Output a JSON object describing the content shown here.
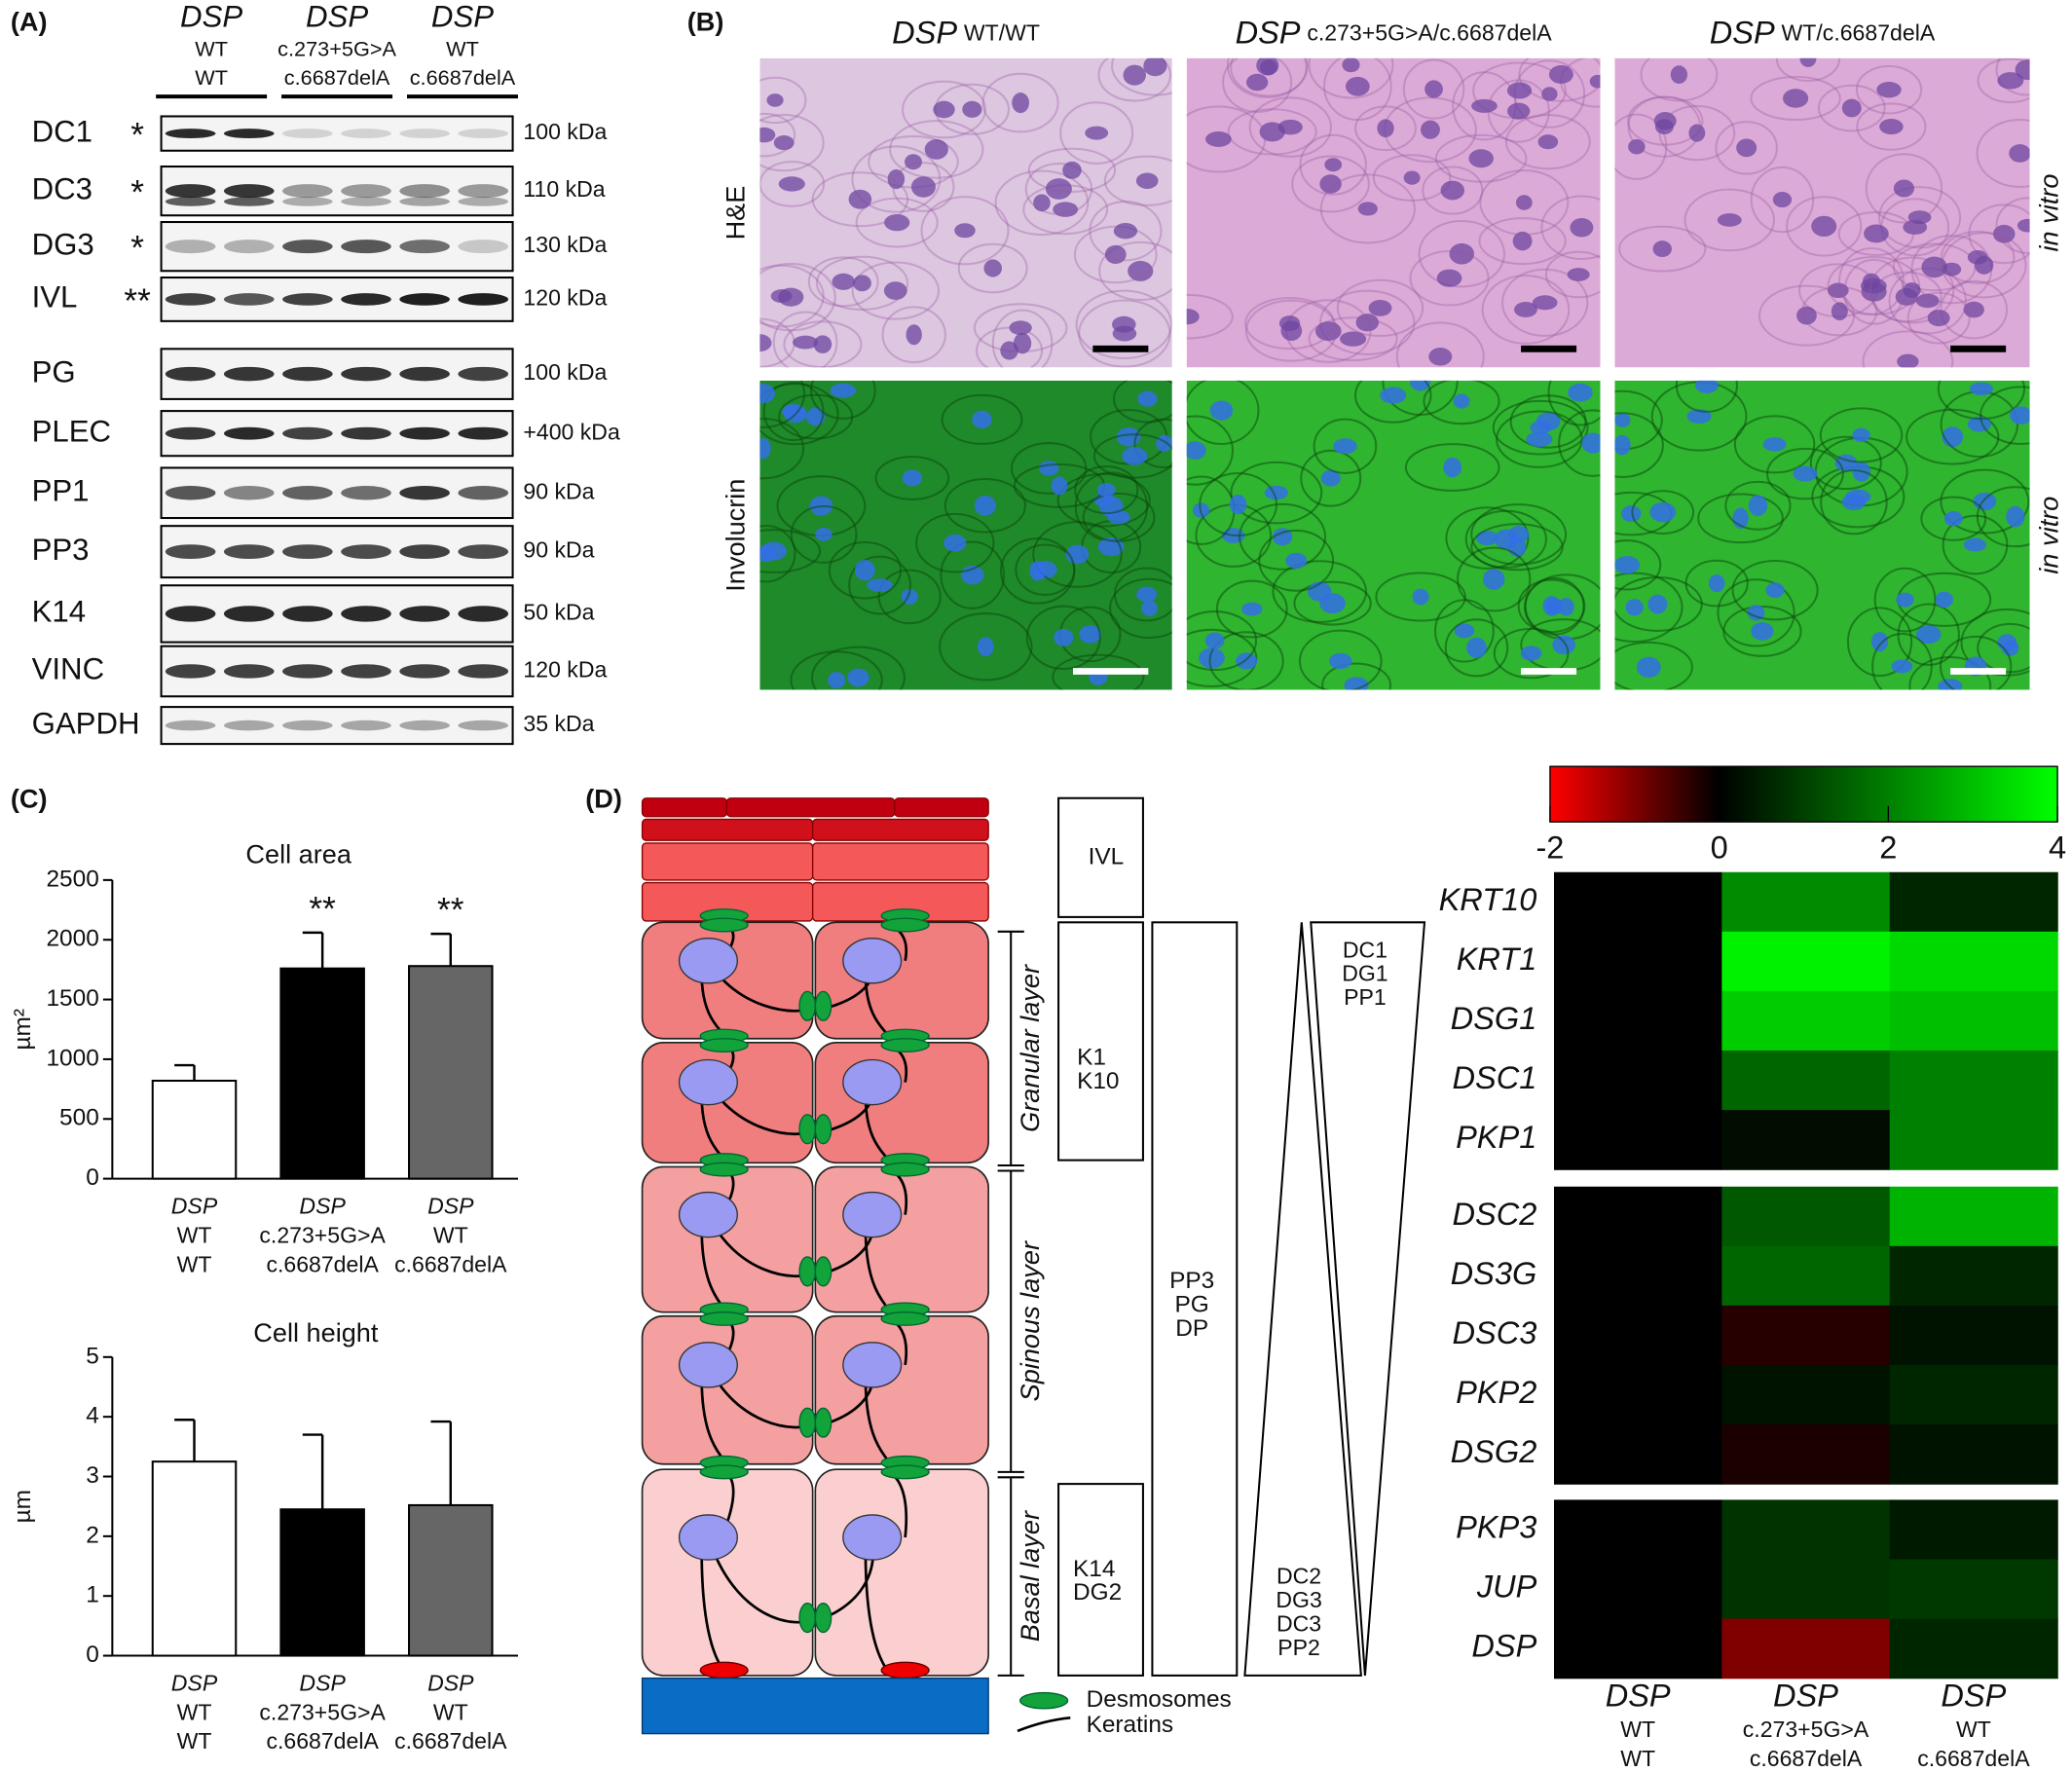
{
  "panel_a": {
    "label": "(A)",
    "groups": [
      {
        "gene": "DSP",
        "allele1": "WT",
        "allele2": "WT"
      },
      {
        "gene": "DSP",
        "allele1": "c.273+5G>A",
        "allele2": "c.6687delA"
      },
      {
        "gene": "DSP",
        "allele1": "WT",
        "allele2": "c.6687delA"
      }
    ],
    "blots": [
      {
        "protein": "DC1",
        "mark": "*",
        "size": "100 kDa"
      },
      {
        "protein": "DC3",
        "mark": "*",
        "size": "110 kDa"
      },
      {
        "protein": "DG3",
        "mark": "*",
        "size": "130 kDa"
      },
      {
        "protein": "IVL",
        "mark": "**",
        "size": "120 kDa"
      },
      {
        "protein": "PG",
        "size": "100 kDa"
      },
      {
        "protein": "PLEC",
        "size": "+400 kDa"
      },
      {
        "protein": "PP1",
        "size": "90 kDa"
      },
      {
        "protein": "PP3",
        "size": "90 kDa"
      },
      {
        "protein": "K14",
        "size": "50 kDa"
      },
      {
        "protein": "VINC",
        "size": "120 kDa"
      },
      {
        "protein": "GAPDH",
        "size": "35 kDa"
      }
    ]
  },
  "panel_b": {
    "label": "(B)",
    "columns": [
      {
        "gene": "DSP",
        "genotype": "WT/WT"
      },
      {
        "gene": "DSP",
        "genotype": "c.273+5G>A/c.6687delA"
      },
      {
        "gene": "DSP",
        "genotype": "WT/c.6687delA"
      }
    ],
    "rows": [
      {
        "stain": "H&E",
        "note": "in vitro"
      },
      {
        "stain": "Involucrin",
        "note": "in vitro"
      }
    ]
  },
  "panel_c": {
    "label": "(C)"
  },
  "panel_d": {
    "label": "(D)",
    "cornified_marker": "IVL",
    "granular_markers": [
      "K1",
      "K10"
    ],
    "basal_markers": [
      "K14",
      "DG2"
    ],
    "layers": [
      "Granular layer",
      "Spinous layer",
      "Basal layer"
    ],
    "constant_markers": [
      "PP3",
      "PG",
      "DP"
    ],
    "decreasing_markers": [
      "DC1",
      "DG1",
      "PP1"
    ],
    "increasing_markers": [
      "DC2",
      "DG3",
      "DC3",
      "PP2"
    ],
    "legend": [
      "Desmosomes",
      "Keratins"
    ]
  },
  "chart_data": [
    {
      "type": "bar",
      "title": "Cell area",
      "y_label": "µm²",
      "categories": [
        [
          "DSP",
          "WT",
          "WT"
        ],
        [
          "DSP",
          "c.273+5G>A",
          "c.6687delA"
        ],
        [
          "DSP",
          "WT",
          "c.6687delA"
        ]
      ],
      "values": [
        820,
        1760,
        1780
      ],
      "errors": [
        130,
        300,
        270
      ],
      "colors": [
        "#ffffff",
        "#000000",
        "#666666"
      ],
      "significance": [
        null,
        "**",
        "**"
      ],
      "ylim": [
        0,
        2500
      ],
      "yticks": [
        0,
        500,
        1000,
        1500,
        2000,
        2500
      ]
    },
    {
      "type": "bar",
      "title": "Cell height",
      "y_label": "µm",
      "categories": [
        [
          "DSP",
          "WT",
          "WT"
        ],
        [
          "DSP",
          "c.273+5G>A",
          "c.6687delA"
        ],
        [
          "DSP",
          "WT",
          "c.6687delA"
        ]
      ],
      "values": [
        3.25,
        2.45,
        2.52
      ],
      "errors": [
        0.7,
        1.25,
        1.4
      ],
      "colors": [
        "#ffffff",
        "#000000",
        "#666666"
      ],
      "significance": [
        null,
        null,
        null
      ],
      "ylim": [
        0,
        5
      ],
      "yticks": [
        0,
        1,
        2,
        3,
        4,
        5
      ]
    },
    {
      "type": "heatmap",
      "colorlim": [
        -2,
        4
      ],
      "colorticks": [
        -2,
        0,
        2,
        4
      ],
      "colormap": [
        "#ff0000",
        "#000000",
        "#00ff00"
      ],
      "columns": [
        [
          "DSP",
          "WT",
          "WT"
        ],
        [
          "DSP",
          "c.273+5G>A",
          "c.6687delA"
        ],
        [
          "DSP",
          "WT",
          "c.6687delA"
        ]
      ],
      "row_groups": [
        {
          "rows": [
            "KRT10",
            "KRT1",
            "DSG1",
            "DSC1",
            "PKP1"
          ],
          "values": [
            [
              0,
              2.2,
              0.6
            ],
            [
              0,
              3.8,
              3.4
            ],
            [
              0,
              3.2,
              3.0
            ],
            [
              0,
              1.6,
              2.0
            ],
            [
              0,
              0.2,
              2.0
            ]
          ]
        },
        {
          "rows": [
            "DSC2",
            "DS3G",
            "DSC3",
            "PKP2",
            "DSG2"
          ],
          "values": [
            [
              0,
              1.4,
              2.8
            ],
            [
              0,
              1.6,
              0.6
            ],
            [
              0,
              -0.3,
              0.3
            ],
            [
              0,
              0.3,
              0.6
            ],
            [
              0,
              -0.2,
              0.3
            ]
          ]
        },
        {
          "rows": [
            "PKP3",
            "JUP",
            "DSP"
          ],
          "values": [
            [
              0,
              0.8,
              0.4
            ],
            [
              0,
              0.8,
              0.9
            ],
            [
              0,
              -1.0,
              0.6
            ]
          ]
        }
      ]
    }
  ]
}
